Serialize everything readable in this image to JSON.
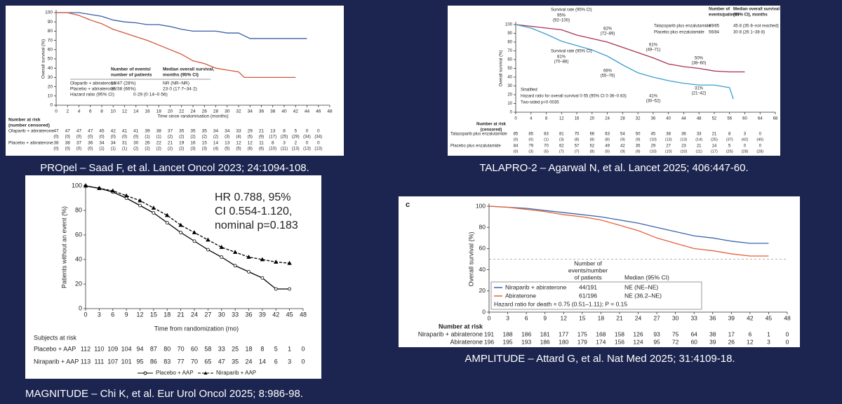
{
  "chart_data": [
    {
      "type": "line",
      "caption": "PROpel – Saad F, et al.  Lancet Oncol 2023; 24:1094-108.",
      "ylabel": "Overall survival (%)",
      "xlabel": "Time since randomisation (months)",
      "xlim": [
        0,
        48
      ],
      "xticks": [
        0,
        2,
        4,
        6,
        8,
        10,
        12,
        14,
        16,
        18,
        20,
        22,
        24,
        26,
        28,
        30,
        32,
        34,
        36,
        38,
        40,
        42,
        44,
        46,
        48
      ],
      "ylim": [
        0,
        100
      ],
      "yticks": [
        0,
        10,
        20,
        30,
        40,
        50,
        60,
        70,
        80,
        90,
        100
      ],
      "series": [
        {
          "name": "Olaparib + abiraterone",
          "color": "#3c5fa6",
          "x": [
            0,
            2,
            4,
            6,
            8,
            10,
            12,
            14,
            16,
            18,
            20,
            22,
            24,
            26,
            28,
            30,
            32,
            34,
            36,
            38,
            40,
            42,
            44
          ],
          "values": [
            100,
            100,
            100,
            98,
            96,
            92,
            90,
            89,
            87,
            87,
            85,
            82,
            80,
            80,
            80,
            78,
            78,
            72,
            72,
            72,
            72,
            72,
            72
          ]
        },
        {
          "name": "Placebo + abiraterone",
          "color": "#d4553d",
          "x": [
            0,
            2,
            4,
            6,
            8,
            10,
            12,
            14,
            16,
            18,
            20,
            22,
            24,
            26,
            28,
            30,
            32,
            33,
            34,
            36,
            38,
            40,
            42
          ],
          "values": [
            100,
            100,
            97,
            92,
            88,
            82,
            78,
            74,
            70,
            65,
            60,
            55,
            48,
            45,
            40,
            38,
            36,
            30,
            30,
            30,
            30,
            30,
            30
          ]
        }
      ],
      "legend_table": {
        "header": [
          [
            "Number of events/",
            "number of patients"
          ],
          [
            "Median overall survival,",
            "months (95% CI)"
          ]
        ],
        "rows": [
          [
            "Olaparib + abiraterone",
            "13/47 (28%)",
            "NR (NR–NR)"
          ],
          [
            "Placebo + abiraterone",
            "25/38 (66%)",
            "23·0 (17·7–34·2)"
          ],
          [
            "Hazard ratio (95% CI)",
            "0·29 (0·14–0·56)"
          ]
        ]
      },
      "at_risk": {
        "title": [
          "Number at risk",
          "(number censored)"
        ],
        "rows": [
          {
            "name": "Olaparib + abiraterone",
            "values": [
              47,
              47,
              47,
              47,
              45,
              42,
              41,
              41,
              39,
              38,
              37,
              35,
              35,
              35,
              34,
              34,
              33,
              29,
              21,
              13,
              8,
              5,
              0,
              0
            ],
            "censored": [
              0,
              0,
              0,
              0,
              0,
              0,
              0,
              0,
              1,
              1,
              2,
              2,
              2,
              2,
              2,
              3,
              4,
              5,
              9,
              17,
              25,
              29,
              34,
              34
            ],
            "censored_labels": [
              "(0)",
              "(0)",
              "(0)",
              "(0)",
              "(0)",
              "(0)",
              "(0)",
              "(0)",
              "(1)",
              "(1)",
              "(2)",
              "(2)",
              "(2)",
              "(2)",
              "(2)",
              "(3)",
              "(4)",
              "(5)",
              "(9)",
              "(17)",
              "(25)",
              "(29)",
              "(34)",
              "(34)"
            ]
          },
          {
            "name": "Placebo + abiraterone",
            "values": [
              38,
              38,
              37,
              36,
              34,
              34,
              31,
              30,
              26,
              22,
              21,
              19,
              16,
              15,
              14,
              13,
              12,
              12,
              11,
              8,
              3,
              2,
              0,
              0
            ],
            "censored": [
              0,
              0,
              0,
              0,
              1,
              1,
              1,
              2,
              2,
              2,
              2,
              2,
              3,
              3,
              4,
              5,
              5,
              6,
              6,
              10,
              11,
              13,
              13,
              13
            ],
            "censored_labels": [
              "(0)",
              "(0)",
              "(0)",
              "(0)",
              "(1)",
              "(1)",
              "(1)",
              "(2)",
              "(2)",
              "(2)",
              "(2)",
              "(2)",
              "(3)",
              "(3)",
              "(4)",
              "(5)",
              "(5)",
              "(6)",
              "(6)",
              "(10)",
              "(11)",
              "(13)",
              "(13)",
              "(13)"
            ]
          }
        ]
      }
    },
    {
      "type": "line",
      "caption": "TALAPRO-2 – Agarwal N, et al.  Lancet 2025; 406:447-60.",
      "ylabel": "Overall survival (%)",
      "xlim": [
        0,
        68
      ],
      "xticks": [
        0,
        4,
        8,
        12,
        16,
        20,
        24,
        28,
        32,
        36,
        40,
        44,
        48,
        52,
        56,
        60,
        64,
        68
      ],
      "ylim": [
        0,
        100
      ],
      "yticks": [
        0,
        10,
        20,
        30,
        40,
        50,
        60,
        70,
        80,
        90,
        100
      ],
      "series": [
        {
          "name": "Talazoparib plus enzalutamide",
          "color": "#a8334f",
          "x": [
            0,
            4,
            8,
            12,
            16,
            20,
            24,
            28,
            32,
            36,
            40,
            44,
            48,
            52,
            56,
            60
          ],
          "values": [
            100,
            98,
            96,
            94,
            88,
            84,
            80,
            74,
            68,
            62,
            55,
            52,
            50,
            47,
            46,
            46
          ]
        },
        {
          "name": "Placebo plus enzalutamide",
          "color": "#3d9dd1",
          "x": [
            0,
            4,
            8,
            12,
            16,
            20,
            24,
            28,
            32,
            36,
            40,
            44,
            48,
            52,
            56,
            57
          ],
          "values": [
            100,
            96,
            89,
            81,
            76,
            71,
            64,
            54,
            45,
            40,
            36,
            33,
            31,
            31,
            28,
            15
          ]
        }
      ],
      "annotations": [
        {
          "text": "Survival rate (95% CI)",
          "color": "#a8334f"
        },
        {
          "text": "95%",
          "color": "#a8334f"
        },
        {
          "text": "(92–100)",
          "color": "#a8334f"
        },
        {
          "text": "82%",
          "color": "#a8334f"
        },
        {
          "text": "(72–89)",
          "color": "#a8334f"
        },
        {
          "text": "61%",
          "color": "#a8334f"
        },
        {
          "text": "(49–71)",
          "color": "#a8334f"
        },
        {
          "text": "50%",
          "color": "#a8334f"
        },
        {
          "text": "(38–60)",
          "color": "#a8334f"
        },
        {
          "text": "Survival rate (95% CI)",
          "color": "#3d9dd1"
        },
        {
          "text": "81%",
          "color": "#3d9dd1"
        },
        {
          "text": "(70–88)",
          "color": "#3d9dd1"
        },
        {
          "text": "66%",
          "color": "#3d9dd1"
        },
        {
          "text": "(55–76)",
          "color": "#3d9dd1"
        },
        {
          "text": "41%",
          "color": "#3d9dd1"
        },
        {
          "text": "(30–52)",
          "color": "#3d9dd1"
        },
        {
          "text": "31%",
          "color": "#3d9dd1"
        },
        {
          "text": "(21–42)",
          "color": "#3d9dd1"
        }
      ],
      "stats": [
        "Stratified",
        "Hazard ratio for overall survival 0·55 (95% CI 0·36–0·83)",
        "Two-sided p=0·0035"
      ],
      "legend_table": {
        "header": [
          [
            "Number of",
            "events/patients"
          ],
          [
            "Median overall survival",
            "(95% CI), months"
          ]
        ],
        "rows": [
          [
            "Talazoparib plus enzalutamide",
            "49/85",
            "45·8 (35·8–not reached)"
          ],
          [
            "Placebo plus enzalutamide",
            "56/84",
            "30·8 (26·1–38·8)"
          ]
        ]
      },
      "at_risk": {
        "title": [
          "Number at risk",
          "(censored)"
        ],
        "rows": [
          {
            "name": "Talazoparib plus enzalutamide",
            "values": [
              85,
              85,
              83,
              81,
              70,
              66,
              63,
              54,
              50,
              45,
              38,
              36,
              33,
              21,
              8,
              3,
              0
            ],
            "censored": [
              0,
              0,
              1,
              3,
              8,
              8,
              8,
              9,
              9,
              10,
              13,
              13,
              14,
              25,
              37,
              42,
              45
            ],
            "censored_labels": [
              "(0)",
              "(0)",
              "(1)",
              "(3)",
              "(8)",
              "(8)",
              "(8)",
              "(9)",
              "(9)",
              "(10)",
              "(13)",
              "(13)",
              "(14)",
              "(25)",
              "(37)",
              "(42)",
              "(45)"
            ]
          },
          {
            "name": "Placebo plus enzalutamide",
            "values": [
              84,
              79,
              70,
              62,
              57,
              52,
              49,
              42,
              35,
              29,
              27,
              23,
              21,
              14,
              5,
              0,
              0
            ],
            "censored": [
              0,
              3,
              5,
              7,
              7,
              8,
              9,
              9,
              9,
              10,
              10,
              10,
              11,
              17,
              25,
              28,
              28
            ],
            "censored_labels": [
              "(0)",
              "(3)",
              "(5)",
              "(7)",
              "(7)",
              "(8)",
              "(9)",
              "(9)",
              "(9)",
              "(10)",
              "(10)",
              "(10)",
              "(11)",
              "(17)",
              "(25)",
              "(28)",
              "(28)"
            ]
          }
        ]
      }
    },
    {
      "type": "line",
      "caption": "MAGNITUDE – Chi K, et al.  Eur Urol Oncol 2025; 8:986-98.",
      "ylabel": "Patients without an event (%)",
      "xlabel": "Time from randomization (mo)",
      "xlim": [
        0,
        48
      ],
      "xticks": [
        0,
        3,
        6,
        9,
        12,
        15,
        18,
        21,
        24,
        27,
        30,
        33,
        36,
        39,
        42,
        45,
        48
      ],
      "ylim": [
        0,
        100
      ],
      "yticks": [
        0,
        20,
        40,
        60,
        80,
        100
      ],
      "series": [
        {
          "name": "Placebo + AAP",
          "color": "#000000",
          "dash": false,
          "marker": "circle",
          "x": [
            0,
            3,
            6,
            9,
            12,
            15,
            18,
            21,
            24,
            27,
            30,
            33,
            36,
            39,
            42,
            45
          ],
          "values": [
            100,
            98,
            95,
            90,
            84,
            78,
            70,
            62,
            55,
            48,
            42,
            35,
            30,
            25,
            16,
            16
          ]
        },
        {
          "name": "Niraparib + AAP",
          "color": "#000000",
          "dash": true,
          "marker": "triangle",
          "x": [
            0,
            3,
            6,
            9,
            12,
            15,
            18,
            21,
            24,
            27,
            30,
            33,
            36,
            39,
            42,
            45
          ],
          "values": [
            100,
            98,
            96,
            92,
            88,
            82,
            76,
            68,
            62,
            56,
            50,
            46,
            42,
            40,
            38,
            37
          ]
        }
      ],
      "annotations": [
        {
          "text": "HR 0.788, 95%"
        },
        {
          "text": "CI 0.554-1.120,"
        },
        {
          "text": "nominal p=0.183"
        }
      ],
      "legend": true,
      "at_risk": {
        "title": [
          "Subjects at risk"
        ],
        "rows": [
          {
            "name": "Placebo + AAP",
            "values": [
              112,
              110,
              109,
              104,
              94,
              87,
              80,
              70,
              60,
              58,
              33,
              25,
              18,
              8,
              5,
              1,
              0
            ]
          },
          {
            "name": "Niraparib + AAP",
            "values": [
              113,
              111,
              107,
              101,
              95,
              86,
              83,
              77,
              70,
              65,
              47,
              35,
              24,
              14,
              6,
              3,
              0
            ]
          }
        ]
      }
    },
    {
      "type": "line",
      "caption": "AMPLITUDE – Attard G, et al.  Nat Med 2025; 31:4109-18.",
      "panel_label": "c",
      "ylabel": "Overall survival (%)",
      "xlim": [
        0,
        48
      ],
      "xticks": [
        0,
        3,
        6,
        9,
        12,
        15,
        18,
        21,
        24,
        27,
        30,
        33,
        36,
        39,
        42,
        45,
        48
      ],
      "ylim": [
        0,
        100
      ],
      "yticks": [
        0,
        20,
        40,
        60,
        80,
        100
      ],
      "hline": 50,
      "series": [
        {
          "name": "Niraparib + abiraterone",
          "color": "#3a64ad",
          "x": [
            0,
            3,
            6,
            9,
            12,
            15,
            18,
            21,
            24,
            27,
            30,
            33,
            36,
            39,
            42,
            45
          ],
          "values": [
            100,
            99,
            98,
            96,
            94,
            92,
            90,
            87,
            84,
            80,
            76,
            72,
            70,
            67,
            65,
            65
          ]
        },
        {
          "name": "Abiraterone",
          "color": "#e4613b",
          "x": [
            0,
            3,
            6,
            9,
            12,
            15,
            18,
            21,
            24,
            27,
            30,
            33,
            36,
            39,
            42,
            45
          ],
          "values": [
            100,
            99,
            97,
            95,
            92,
            90,
            87,
            82,
            77,
            70,
            65,
            60,
            58,
            55,
            53,
            53
          ]
        }
      ],
      "legend_table": {
        "header": [
          [
            "Number of",
            "events/number",
            "of patients"
          ],
          [
            "Median (95% CI)"
          ]
        ],
        "rows": [
          [
            "Niraparib + abiraterone",
            "44/191",
            "NE (NE–NE)"
          ],
          [
            "Abiraterone",
            "61/196",
            "NE (36.2–NE)"
          ],
          [
            "Hazard ratio for death = 0.75 (0.51–1.11); P = 0.15"
          ]
        ]
      },
      "at_risk": {
        "title": [
          "Number at risk"
        ],
        "rows": [
          {
            "name": "Niraparib + abiraterone",
            "values": [
              191,
              188,
              186,
              181,
              177,
              175,
              168,
              158,
              126,
              93,
              75,
              64,
              38,
              17,
              6,
              1,
              0
            ]
          },
          {
            "name": "Abiraterone",
            "values": [
              196,
              195,
              193,
              186,
              180,
              179,
              174,
              156,
              124,
              95,
              72,
              60,
              39,
              26,
              12,
              3,
              0
            ]
          }
        ]
      }
    }
  ]
}
